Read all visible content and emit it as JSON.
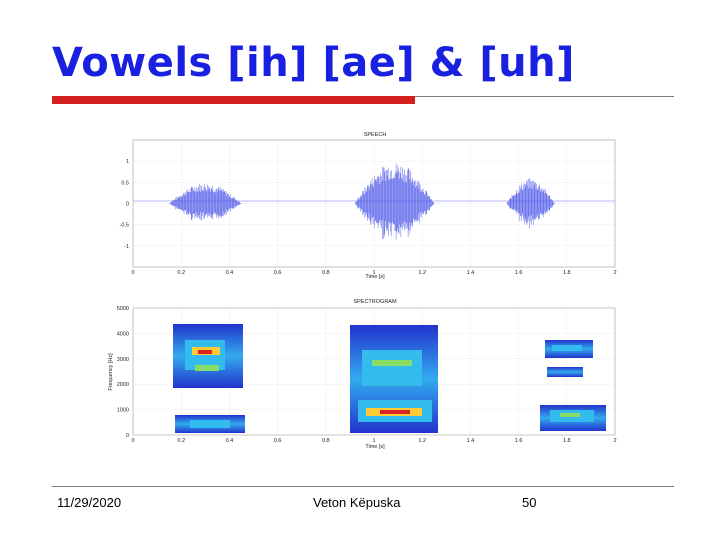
{
  "slide": {
    "title": "Vowels [ih] [ae] & [uh]",
    "footer_date": "11/29/2020",
    "footer_author": "Veton Këpuska",
    "page_number": "50"
  },
  "colors": {
    "title": "#1a20e0",
    "accent_bar": "#d41f1f",
    "waveform": "#4a55e8"
  },
  "chart_data": [
    {
      "type": "line",
      "title": "SPEECH",
      "xlabel": "Time [s]",
      "ylabel": "",
      "xlim": [
        0,
        2
      ],
      "ylim": [
        -1.5,
        1.5
      ],
      "x_ticks": [
        "0",
        "0.2",
        "0.4",
        "0.6",
        "0.8",
        "1",
        "1.2",
        "1.4",
        "1.6",
        "1.8",
        "2"
      ],
      "y_ticks": [
        "1",
        "0.5",
        "0",
        "-0.5",
        "-1"
      ],
      "grid": true,
      "segments": [
        {
          "start": 0.15,
          "end": 0.45,
          "peak": 0.5
        },
        {
          "start": 0.92,
          "end": 1.25,
          "peak": 1.0
        },
        {
          "start": 1.55,
          "end": 1.75,
          "peak": 0.6
        }
      ]
    },
    {
      "type": "heatmap",
      "title": "SPECTROGRAM",
      "xlabel": "Time [s]",
      "ylabel": "Frequency [Hz]",
      "xlim": [
        0,
        2
      ],
      "ylim": [
        0,
        5000
      ],
      "x_ticks": [
        "0",
        "0.2",
        "0.4",
        "0.6",
        "0.8",
        "1",
        "1.2",
        "1.4",
        "1.6",
        "1.8",
        "2"
      ],
      "y_ticks": [
        "5000",
        "4000",
        "3000",
        "2000",
        "1000",
        "0"
      ],
      "grid": true
    }
  ]
}
